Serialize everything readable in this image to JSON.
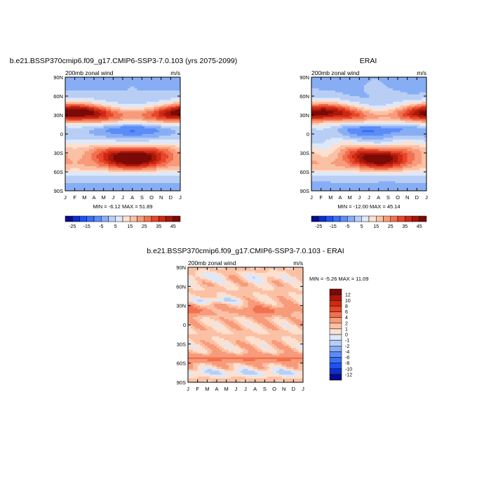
{
  "page": {
    "background": "#ffffff"
  },
  "palette": {
    "levels_top": [
      -25,
      -20,
      -15,
      -10,
      -5,
      0,
      5,
      10,
      15,
      20,
      25,
      30,
      35,
      40,
      45
    ],
    "levels_diff": [
      -12,
      -10,
      -8,
      -6,
      -4,
      -2,
      -1,
      0,
      1,
      2,
      4,
      6,
      8,
      10,
      12
    ],
    "colors": [
      "#0a0a8c",
      "#0d2ecc",
      "#1f52f0",
      "#3a6ef5",
      "#5b8cf7",
      "#87aef5",
      "#b8cef5",
      "#dde8fa",
      "#fce0d0",
      "#fbc1a5",
      "#f79b7a",
      "#f2714f",
      "#e8452b",
      "#cc2914",
      "#a8170a",
      "#7a0a06"
    ]
  },
  "chart_data": [
    {
      "type": "heatmap",
      "title": "b.e21.BSSP370cmip6.f09_g17.CMIP6-SSP3-7.0.103 (yrs 2075-2099)",
      "left_label": "200mb zonal wind",
      "right_label": "m/s",
      "x_tick_labels": [
        "J",
        "F",
        "M",
        "A",
        "M",
        "J",
        "J",
        "A",
        "S",
        "O",
        "N",
        "D",
        "J"
      ],
      "y_tick_labels": [
        "90N",
        "60N",
        "30N",
        "0",
        "30S",
        "60S",
        "90S"
      ],
      "y_ticks": [
        90,
        60,
        30,
        0,
        -30,
        -60,
        -90
      ],
      "xlim": [
        0,
        12
      ],
      "ylim": [
        -90,
        90
      ],
      "stats": "MIN =  -6.12 MAX =  51.89",
      "colorbar_labels": [
        "-25",
        "-15",
        "-5",
        "5",
        "15",
        "25",
        "35",
        "45"
      ],
      "min": -6.12,
      "max": 51.89
    },
    {
      "type": "heatmap",
      "title": "ERAI",
      "left_label": "200mb zonal wind",
      "right_label": "m/s",
      "x_tick_labels": [
        "J",
        "F",
        "M",
        "A",
        "M",
        "J",
        "J",
        "A",
        "S",
        "O",
        "N",
        "D",
        "J"
      ],
      "y_tick_labels": [
        "90N",
        "60N",
        "30N",
        "0",
        "30S",
        "60S",
        "90S"
      ],
      "y_ticks": [
        90,
        60,
        30,
        0,
        -30,
        -60,
        -90
      ],
      "xlim": [
        0,
        12
      ],
      "ylim": [
        -90,
        90
      ],
      "stats": "MIN = -12.00 MAX =  45.14",
      "colorbar_labels": [
        "-25",
        "-15",
        "-5",
        "5",
        "15",
        "25",
        "35",
        "45"
      ],
      "min": -12.0,
      "max": 45.14
    },
    {
      "type": "heatmap",
      "title": "b.e21.BSSP370cmip6.f09_g17.CMIP6-SSP3-7.0.103 - ERAI",
      "left_label": "200mb zonal wind",
      "right_label": "m/s",
      "x_tick_labels": [
        "J",
        "F",
        "M",
        "A",
        "M",
        "J",
        "J",
        "A",
        "S",
        "O",
        "N",
        "D",
        "J"
      ],
      "y_tick_labels": [
        "90N",
        "60N",
        "30N",
        "0",
        "30S",
        "60S",
        "90S"
      ],
      "y_ticks": [
        90,
        60,
        30,
        0,
        -30,
        -60,
        -90
      ],
      "xlim": [
        0,
        12
      ],
      "ylim": [
        -90,
        90
      ],
      "stats": "MIN =  -5.26 MAX =  11.09",
      "colorbar_labels": [
        "12",
        "10",
        "8",
        "6",
        "4",
        "2",
        "1",
        "0",
        "-1",
        "-2",
        "-4",
        "-6",
        "-8",
        "-10",
        "-12"
      ],
      "min": -5.26,
      "max": 11.09
    }
  ]
}
